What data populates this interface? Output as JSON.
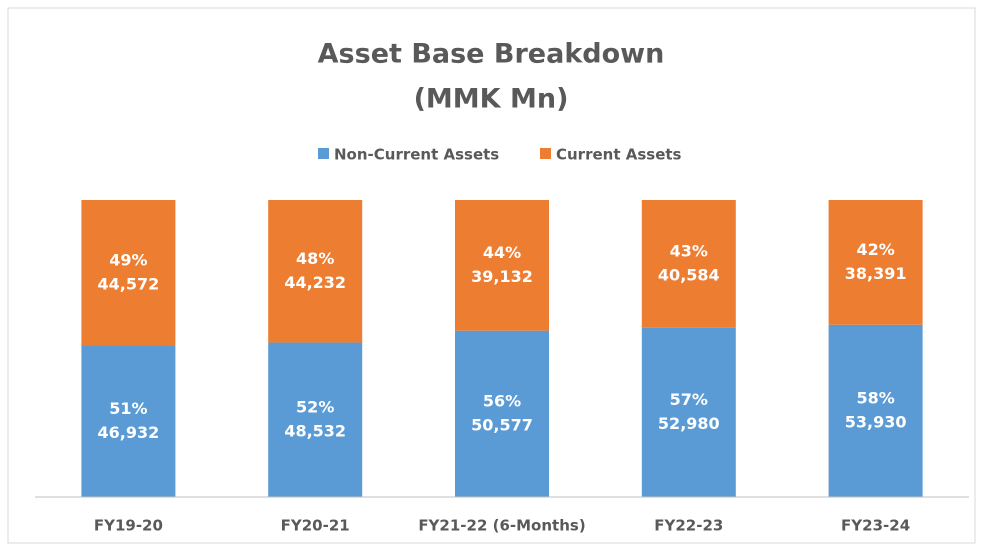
{
  "chart_data": {
    "type": "stacked_bar_100",
    "title": "Asset Base Breakdown",
    "subtitle": "(MMK Mn)",
    "categories": [
      "FY19-20",
      "FY20-21",
      "FY21-22 (6-Months)",
      "FY22-23",
      "FY23-24"
    ],
    "ylim": [
      0,
      100
    ],
    "legend": "top",
    "series": [
      {
        "name": "Non-Current Assets",
        "color": "#5b9bd5",
        "values": [
          51,
          52,
          56,
          57,
          58
        ],
        "value_labels": [
          "51%",
          "52%",
          "56%",
          "57%",
          "58%"
        ],
        "amounts": [
          46932,
          48532,
          50577,
          52980,
          53930
        ],
        "amount_labels": [
          "46,932",
          "48,532",
          "50,577",
          "52,980",
          "53,930"
        ]
      },
      {
        "name": "Current Assets",
        "color": "#ed7d31",
        "values": [
          49,
          48,
          44,
          43,
          42
        ],
        "value_labels": [
          "49%",
          "48%",
          "44%",
          "43%",
          "42%"
        ],
        "amounts": [
          44572,
          44232,
          39132,
          40584,
          38391
        ],
        "amount_labels": [
          "44,572",
          "44,232",
          "39,132",
          "40,584",
          "38,391"
        ]
      }
    ]
  }
}
